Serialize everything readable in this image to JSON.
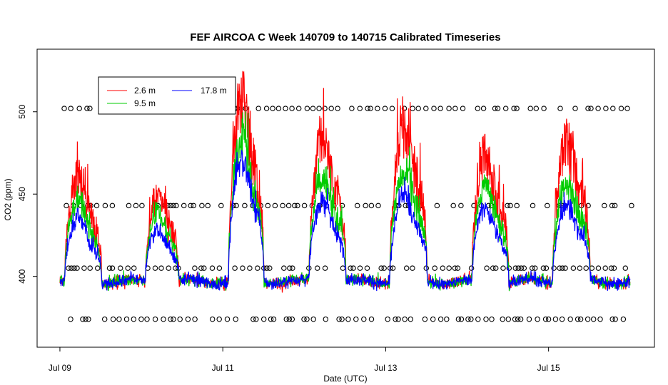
{
  "chart_data": {
    "type": "line",
    "title": "FEF AIRCOA C  Week 140709 to 140715  Calibrated Timeseries",
    "xlabel": "Date (UTC)",
    "ylabel": "CO2 (ppm)",
    "x_ticks": [
      {
        "day": 0,
        "label": "Jul 09"
      },
      {
        "day": 2,
        "label": "Jul 11"
      },
      {
        "day": 4,
        "label": "Jul 13"
      },
      {
        "day": 6,
        "label": "Jul 15"
      }
    ],
    "y_ticks": [
      400,
      450,
      500
    ],
    "xlim": [
      -0.28,
      7.3
    ],
    "ylim": [
      357,
      538
    ],
    "legend": [
      {
        "name": "2.6 m",
        "color": "#ff0000"
      },
      {
        "name": "17.8 m",
        "color": "#0000ff"
      },
      {
        "name": "9.5 m",
        "color": "#00cc00"
      }
    ],
    "legend_position": "top-left",
    "series": [
      {
        "name": "2.6 m",
        "color": "#ff0000",
        "day_profile": {
          "base": 397,
          "peaks": [
            [
              0.06,
              0.58,
              465
            ],
            [
              1.05,
              1.52,
              455
            ],
            [
              2.07,
              2.57,
              515
            ],
            [
              3.06,
              3.58,
              490
            ],
            [
              4.05,
              4.58,
              500
            ],
            [
              5.06,
              5.58,
              480
            ],
            [
              6.05,
              6.58,
              488
            ]
          ]
        }
      },
      {
        "name": "9.5 m",
        "color": "#00cc00",
        "day_profile": {
          "base": 397,
          "peaks": [
            [
              0.06,
              0.58,
              448
            ],
            [
              1.05,
              1.52,
              443
            ],
            [
              2.07,
              2.57,
              490
            ],
            [
              3.06,
              3.58,
              468
            ],
            [
              4.05,
              4.58,
              470
            ],
            [
              5.06,
              5.58,
              460
            ],
            [
              6.05,
              6.58,
              462
            ]
          ]
        }
      },
      {
        "name": "17.8 m",
        "color": "#0000ff",
        "day_profile": {
          "base": 397,
          "peaks": [
            [
              0.06,
              0.58,
              437
            ],
            [
              1.05,
              1.52,
              433
            ],
            [
              2.07,
              2.57,
              475
            ],
            [
              3.06,
              3.58,
              450
            ],
            [
              4.05,
              4.58,
              452
            ],
            [
              5.06,
              5.58,
              445
            ],
            [
              6.05,
              6.58,
              447
            ]
          ]
        }
      }
    ],
    "calibration_markers": {
      "symbol": "circle",
      "levels": [
        502,
        443,
        405,
        374
      ]
    }
  }
}
